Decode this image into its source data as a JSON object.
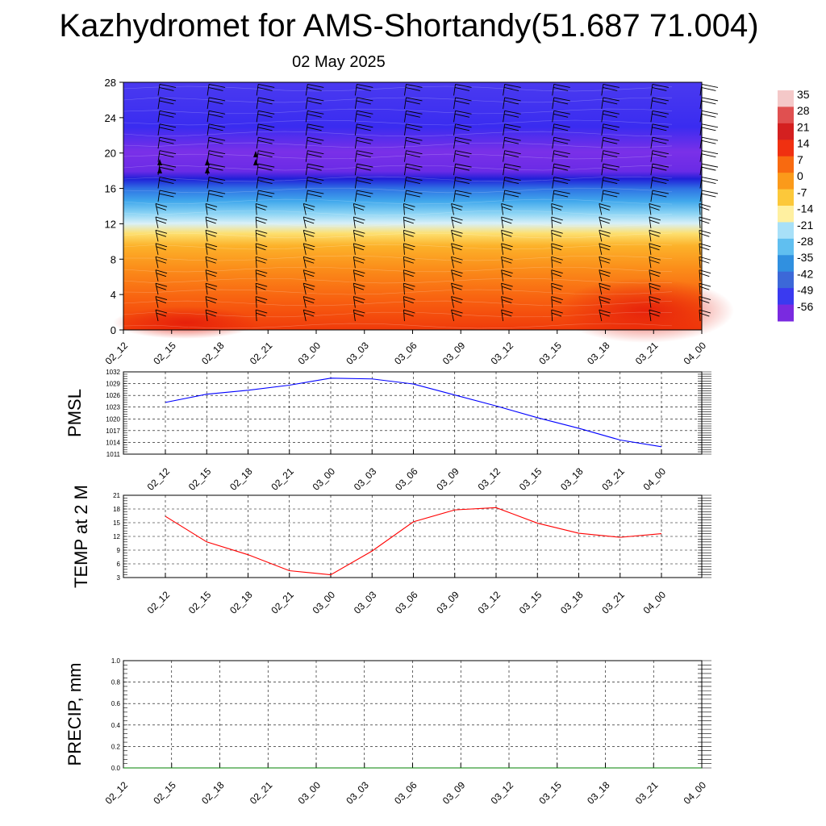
{
  "title": "Kazhydromet for AMS-Shortandy(51.687 71.004)",
  "subtitle": "02 May 2025",
  "chart_data": [
    {
      "type": "heatmap",
      "name": "temperature-height-crosssection",
      "x_tick_labels": [
        "02_12",
        "02_15",
        "02_18",
        "02_21",
        "03_00",
        "03_03",
        "03_06",
        "03_09",
        "03_12",
        "03_15",
        "03_18",
        "03_21",
        "04_00"
      ],
      "y_ticks": [
        0,
        4,
        8,
        12,
        16,
        20,
        24,
        28
      ],
      "ylim": [
        0,
        28
      ],
      "colorbar": {
        "labels": [
          "35",
          "28",
          "21",
          "14",
          "7",
          "0",
          "-7",
          "-14",
          "-21",
          "-28",
          "-35",
          "-42",
          "-49",
          "-56"
        ],
        "colors": [
          "#f4c8c8",
          "#e05050",
          "#d42020",
          "#f03010",
          "#f86a10",
          "#fb9a1a",
          "#fcc83a",
          "#fff0a0",
          "#a8e0f8",
          "#60bff0",
          "#3090e0",
          "#3c68d8",
          "#3a3af0",
          "#7a2ae0"
        ]
      },
      "wind_barbs": true
    },
    {
      "type": "line",
      "name": "pmsl",
      "ylabel": "PMSL",
      "x_tick_labels": [
        "02_12",
        "02_15",
        "02_18",
        "02_21",
        "03_00",
        "03_03",
        "03_06",
        "03_09",
        "03_12",
        "03_15",
        "03_18",
        "03_21",
        "04_00"
      ],
      "y_ticks": [
        1011,
        1014,
        1017,
        1020,
        1023,
        1026,
        1029,
        1032
      ],
      "ylim": [
        1011,
        1032
      ],
      "color": "#0000ff",
      "values": [
        1024.2,
        1026.3,
        1027.3,
        1028.6,
        1030.4,
        1030.2,
        1028.9,
        1026.1,
        1023.3,
        1020.3,
        1017.6,
        1014.6,
        1012.9
      ]
    },
    {
      "type": "line",
      "name": "temp2m",
      "ylabel": "TEMP at 2 M",
      "x_tick_labels": [
        "02_12",
        "02_15",
        "02_18",
        "02_21",
        "03_00",
        "03_03",
        "03_06",
        "03_09",
        "03_12",
        "03_15",
        "03_18",
        "03_21",
        "04_00"
      ],
      "y_ticks": [
        3,
        6,
        9,
        12,
        15,
        18,
        21
      ],
      "ylim": [
        3,
        21
      ],
      "color": "#ff0000",
      "values": [
        16.4,
        10.8,
        8.0,
        4.5,
        3.6,
        8.8,
        15.2,
        17.8,
        18.3,
        14.9,
        12.7,
        11.8,
        12.6
      ]
    },
    {
      "type": "line",
      "name": "precip",
      "ylabel": "PRECIP, mm",
      "x_tick_labels": [
        "02_12",
        "02_15",
        "02_18",
        "02_21",
        "03_00",
        "03_03",
        "03_06",
        "03_09",
        "03_12",
        "03_15",
        "03_18",
        "03_21",
        "04_00"
      ],
      "y_ticks": [
        "0.0",
        "0.2",
        "0.4",
        "0.6",
        "0.8",
        "1.0"
      ],
      "ylim": [
        0,
        1
      ],
      "color": "#008000",
      "values": [
        0,
        0,
        0,
        0,
        0,
        0,
        0,
        0,
        0,
        0,
        0,
        0,
        0
      ]
    }
  ]
}
